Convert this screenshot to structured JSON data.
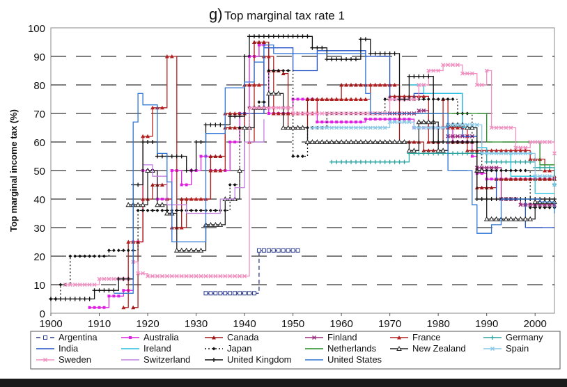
{
  "chart_data": {
    "type": "line",
    "title_prefix": "g)",
    "title": "Top marginal tax rate 1",
    "xlabel": "",
    "ylabel": "Top marginal income tax (%)",
    "xlim": [
      1900,
      2004
    ],
    "ylim": [
      0,
      100
    ],
    "x_ticks": [
      "1900",
      "1910",
      "1920",
      "1930",
      "1940",
      "1950",
      "1960",
      "1970",
      "1980",
      "1990",
      "2000"
    ],
    "y_ticks": [
      "0",
      "10",
      "20",
      "30",
      "40",
      "50",
      "60",
      "70",
      "80",
      "90",
      "100"
    ],
    "grid": "horizontal dashed",
    "legend_position": "bottom",
    "series": [
      {
        "name": "Argentina",
        "color": "#2b3a8c",
        "dash": "6,4",
        "marker": "square-open",
        "points": [
          [
            1932,
            7
          ],
          [
            1942,
            7
          ],
          [
            1943,
            22
          ],
          [
            1951,
            22
          ]
        ]
      },
      {
        "name": "Australia",
        "color": "#e020e0",
        "dash": "",
        "marker": "square",
        "points": [
          [
            1908,
            2
          ],
          [
            1912,
            6
          ],
          [
            1915,
            8
          ],
          [
            1917,
            25
          ],
          [
            1919,
            50
          ],
          [
            1922,
            40
          ],
          [
            1925,
            50
          ],
          [
            1927,
            45
          ],
          [
            1929,
            50
          ],
          [
            1931,
            55
          ],
          [
            1933,
            50
          ],
          [
            1937,
            60
          ],
          [
            1939,
            70
          ],
          [
            1941,
            90
          ],
          [
            1943,
            94
          ],
          [
            1945,
            70
          ],
          [
            1950,
            75
          ],
          [
            1955,
            67
          ],
          [
            1960,
            67
          ],
          [
            1965,
            68
          ],
          [
            1970,
            68
          ],
          [
            1975,
            65
          ],
          [
            1983,
            60
          ],
          [
            1987,
            55
          ],
          [
            1988,
            49
          ],
          [
            1990,
            47
          ],
          [
            2004,
            47
          ]
        ]
      },
      {
        "name": "Canada",
        "color": "#a01818",
        "dash": "",
        "marker": "triangle",
        "points": [
          [
            1917,
            2
          ],
          [
            1918,
            25
          ],
          [
            1919,
            40
          ],
          [
            1921,
            45
          ],
          [
            1924,
            40
          ],
          [
            1925,
            30
          ],
          [
            1927,
            40
          ],
          [
            1933,
            55
          ],
          [
            1936,
            65
          ],
          [
            1940,
            80
          ],
          [
            1942,
            95
          ],
          [
            1945,
            85
          ],
          [
            1948,
            84
          ],
          [
            1949,
            65
          ],
          [
            1953,
            75
          ],
          [
            1960,
            80
          ],
          [
            1968,
            80
          ],
          [
            1970,
            80
          ],
          [
            1972,
            60
          ],
          [
            1977,
            57
          ],
          [
            1982,
            60
          ],
          [
            1988,
            44
          ],
          [
            1992,
            47
          ],
          [
            2004,
            47
          ]
        ]
      },
      {
        "name": "Finland",
        "color": "#9a2b7c",
        "dash": "",
        "marker": "x",
        "points": [
          [
            1966,
            70
          ],
          [
            1976,
            71
          ],
          [
            1978,
            65
          ],
          [
            1982,
            62
          ],
          [
            1988,
            51
          ],
          [
            1993,
            40
          ],
          [
            1997,
            38
          ],
          [
            2004,
            38
          ]
        ]
      },
      {
        "name": "France",
        "color": "#b22222",
        "dash": "",
        "marker": "triangle",
        "points": [
          [
            1915,
            2
          ],
          [
            1916,
            25
          ],
          [
            1919,
            62
          ],
          [
            1921,
            72
          ],
          [
            1923,
            72
          ],
          [
            1924,
            90
          ],
          [
            1926,
            30
          ],
          [
            1928,
            40
          ],
          [
            1930,
            40
          ],
          [
            1933,
            50
          ],
          [
            1936,
            70
          ],
          [
            1939,
            70
          ],
          [
            1941,
            60
          ],
          [
            1942,
            80
          ],
          [
            1944,
            90
          ],
          [
            1946,
            70
          ],
          [
            1948,
            70
          ],
          [
            1952,
            70
          ],
          [
            1955,
            75
          ],
          [
            1960,
            75
          ],
          [
            1966,
            80
          ],
          [
            1970,
            76
          ],
          [
            1978,
            60
          ],
          [
            1981,
            75
          ],
          [
            1982,
            65
          ],
          [
            1984,
            65
          ],
          [
            1986,
            57
          ],
          [
            1992,
            57
          ],
          [
            1999,
            54
          ],
          [
            2002,
            50
          ],
          [
            2004,
            48
          ]
        ]
      },
      {
        "name": "Germany",
        "color": "#2aa4a0",
        "dash": "",
        "marker": "plus",
        "points": [
          [
            1958,
            53
          ],
          [
            1974,
            56
          ],
          [
            1986,
            56
          ],
          [
            1990,
            53
          ],
          [
            2000,
            51
          ],
          [
            2004,
            45
          ]
        ]
      },
      {
        "name": "India",
        "color": "#2050c8",
        "dash": "",
        "marker": "none",
        "points": [
          [
            1939,
            70
          ],
          [
            1944,
            93
          ],
          [
            1950,
            85
          ],
          [
            1955,
            92
          ],
          [
            1965,
            90
          ],
          [
            1970,
            75
          ],
          [
            1972,
            75
          ],
          [
            1975,
            77
          ],
          [
            1985,
            62
          ],
          [
            1988,
            50
          ],
          [
            1990,
            50
          ],
          [
            1992,
            40
          ],
          [
            1998,
            30
          ],
          [
            2004,
            30
          ]
        ]
      },
      {
        "name": "Ireland",
        "color": "#22c0e0",
        "dash": "",
        "marker": "none",
        "points": [
          [
            1974,
            80
          ],
          [
            1977,
            77
          ],
          [
            1985,
            65
          ],
          [
            1988,
            58
          ],
          [
            1990,
            56
          ],
          [
            1995,
            48
          ],
          [
            2000,
            42
          ],
          [
            2004,
            42
          ]
        ]
      },
      {
        "name": "Japan",
        "color": "#111111",
        "dash": "2,3",
        "marker": "diamond",
        "points": [
          [
            1900,
            5
          ],
          [
            1902,
            10
          ],
          [
            1904,
            20
          ],
          [
            1912,
            22
          ],
          [
            1918,
            36
          ],
          [
            1932,
            36
          ],
          [
            1937,
            45
          ],
          [
            1939,
            65
          ],
          [
            1941,
            72
          ],
          [
            1943,
            74
          ],
          [
            1945,
            85
          ],
          [
            1947,
            85
          ],
          [
            1950,
            55
          ],
          [
            1953,
            65
          ],
          [
            1957,
            70
          ],
          [
            1962,
            70
          ],
          [
            1969,
            75
          ],
          [
            1975,
            75
          ],
          [
            1984,
            70
          ],
          [
            1987,
            60
          ],
          [
            1989,
            50
          ],
          [
            1999,
            37
          ],
          [
            2004,
            37
          ]
        ]
      },
      {
        "name": "Netherlands",
        "color": "#228b22",
        "dash": "",
        "marker": "none",
        "points": [
          [
            1965,
            70
          ],
          [
            1972,
            70
          ],
          [
            1990,
            60
          ],
          [
            1995,
            60
          ],
          [
            2001,
            52
          ],
          [
            2004,
            52
          ]
        ]
      },
      {
        "name": "New Zealand",
        "color": "#222222",
        "dash": "",
        "marker": "triangle-open",
        "points": [
          [
            1916,
            38
          ],
          [
            1920,
            50
          ],
          [
            1922,
            38
          ],
          [
            1924,
            35
          ],
          [
            1926,
            22
          ],
          [
            1930,
            22
          ],
          [
            1932,
            31
          ],
          [
            1936,
            40
          ],
          [
            1939,
            50
          ],
          [
            1940,
            65
          ],
          [
            1942,
            72
          ],
          [
            1945,
            77
          ],
          [
            1948,
            65
          ],
          [
            1951,
            65
          ],
          [
            1953,
            60
          ],
          [
            1970,
            60
          ],
          [
            1974,
            57
          ],
          [
            1976,
            67
          ],
          [
            1980,
            57
          ],
          [
            1982,
            66
          ],
          [
            1986,
            65
          ],
          [
            1988,
            50
          ],
          [
            1990,
            33
          ],
          [
            1996,
            33
          ],
          [
            2000,
            39
          ],
          [
            2004,
            39
          ]
        ]
      },
      {
        "name": "Spain",
        "color": "#88c8e8",
        "dash": "",
        "marker": "x",
        "points": [
          [
            1954,
            65
          ],
          [
            1963,
            65
          ],
          [
            1970,
            67
          ],
          [
            1975,
            65
          ],
          [
            1982,
            66
          ],
          [
            1985,
            66
          ],
          [
            1989,
            56
          ],
          [
            1995,
            56
          ],
          [
            2000,
            48
          ],
          [
            2004,
            45
          ]
        ]
      },
      {
        "name": "Sweden",
        "color": "#f090c0",
        "dash": "",
        "marker": "x",
        "points": [
          [
            1903,
            10
          ],
          [
            1910,
            12
          ],
          [
            1917,
            18
          ],
          [
            1918,
            14
          ],
          [
            1920,
            13
          ],
          [
            1941,
            72
          ],
          [
            1950,
            70
          ],
          [
            1955,
            70
          ],
          [
            1962,
            70
          ],
          [
            1970,
            75
          ],
          [
            1976,
            80
          ],
          [
            1978,
            85
          ],
          [
            1981,
            87
          ],
          [
            1985,
            84
          ],
          [
            1988,
            80
          ],
          [
            1990,
            85
          ],
          [
            1991,
            65
          ],
          [
            1996,
            58
          ],
          [
            1999,
            60
          ],
          [
            2004,
            56
          ]
        ]
      },
      {
        "name": "Switzerland",
        "color": "#c080e0",
        "dash": "",
        "marker": "none",
        "points": [
          [
            1919,
            52
          ],
          [
            1921,
            48
          ],
          [
            1924,
            38
          ],
          [
            1928,
            35
          ],
          [
            1935,
            40
          ],
          [
            1938,
            44
          ],
          [
            1940,
            60
          ],
          [
            1944,
            68
          ]
        ]
      },
      {
        "name": "United Kingdom",
        "color": "#111111",
        "dash": "",
        "marker": "plus",
        "points": [
          [
            1900,
            5
          ],
          [
            1904,
            5
          ],
          [
            1909,
            8
          ],
          [
            1913,
            8
          ],
          [
            1914,
            12
          ],
          [
            1917,
            45
          ],
          [
            1919,
            60
          ],
          [
            1922,
            55
          ],
          [
            1928,
            50
          ],
          [
            1930,
            60
          ],
          [
            1932,
            66
          ],
          [
            1937,
            69
          ],
          [
            1940,
            90
          ],
          [
            1941,
            97
          ],
          [
            1952,
            97
          ],
          [
            1954,
            93
          ],
          [
            1957,
            89
          ],
          [
            1963,
            89
          ],
          [
            1964,
            96
          ],
          [
            1966,
            91
          ],
          [
            1971,
            91
          ],
          [
            1972,
            75
          ],
          [
            1974,
            83
          ],
          [
            1977,
            83
          ],
          [
            1979,
            60
          ],
          [
            1988,
            40
          ],
          [
            2004,
            40
          ]
        ]
      },
      {
        "name": "United States",
        "color": "#2f75d6",
        "dash": "",
        "marker": "none",
        "points": [
          [
            1913,
            7
          ],
          [
            1915,
            7
          ],
          [
            1917,
            67
          ],
          [
            1918,
            77
          ],
          [
            1919,
            73
          ],
          [
            1921,
            73
          ],
          [
            1922,
            56
          ],
          [
            1924,
            46
          ],
          [
            1925,
            25
          ],
          [
            1931,
            25
          ],
          [
            1932,
            63
          ],
          [
            1936,
            79
          ],
          [
            1940,
            81
          ],
          [
            1942,
            88
          ],
          [
            1944,
            94
          ],
          [
            1946,
            91
          ],
          [
            1964,
            91
          ],
          [
            1965,
            77
          ],
          [
            1966,
            70
          ],
          [
            1982,
            50
          ],
          [
            1987,
            38
          ],
          [
            1988,
            28
          ],
          [
            1990,
            28
          ],
          [
            1991,
            31
          ],
          [
            1993,
            40
          ],
          [
            2001,
            39
          ],
          [
            2004,
            35
          ]
        ]
      }
    ]
  },
  "legend": {
    "items": [
      "Argentina",
      "Australia",
      "Canada",
      "Finland",
      "France",
      "Germany",
      "India",
      "Ireland",
      "Japan",
      "Netherlands",
      "New Zealand",
      "Spain",
      "Sweden",
      "Switzerland",
      "United Kingdom",
      "United States"
    ]
  }
}
